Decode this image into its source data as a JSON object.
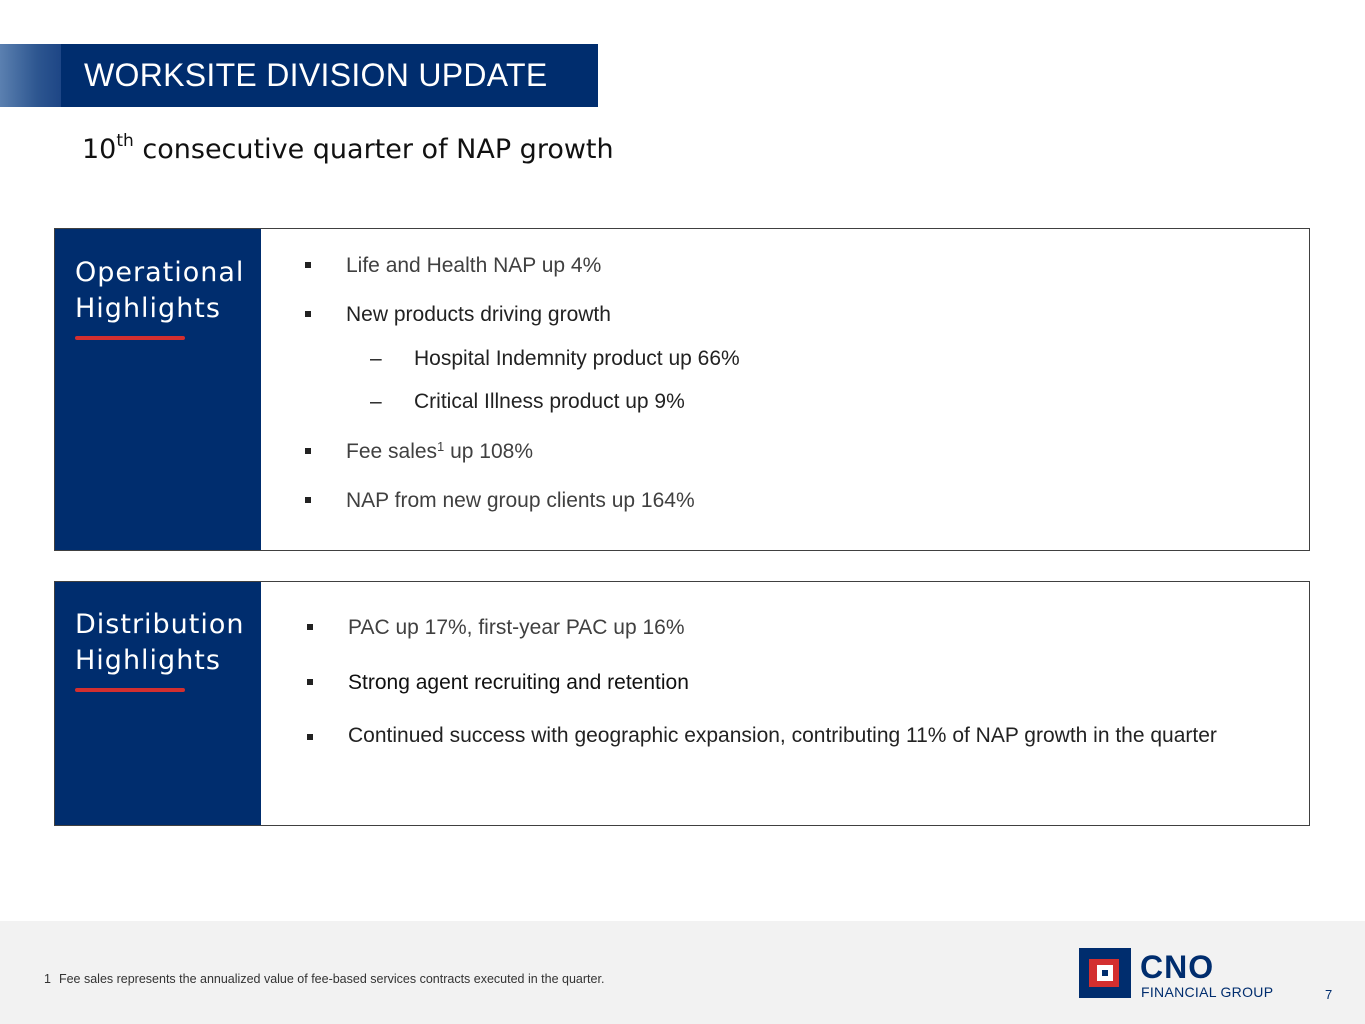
{
  "header": {
    "title": "WORKSITE DIVISION UPDATE",
    "subtitle_prefix": "10",
    "subtitle_sup": "th",
    "subtitle_rest": " consecutive quarter of NAP growth"
  },
  "operational": {
    "heading_line1": "Operational",
    "heading_line2": "Highlights",
    "bullets": [
      {
        "text": "Life and Health NAP up 4%"
      },
      {
        "text": "New products driving growth"
      },
      {
        "text": "Hospital Indemnity product up 66%"
      },
      {
        "text": "Critical Illness product up 9%"
      },
      {
        "text_before": "Fee sales",
        "sup": "1",
        "text_after": " up 108%"
      },
      {
        "text": "NAP from new group clients up 164%"
      }
    ],
    "sub_bullet_marker": "–"
  },
  "distribution": {
    "heading_line1": "Distribution",
    "heading_line2": "Highlights",
    "bullets": [
      {
        "text": "PAC up 17%, first-year PAC up 16%"
      },
      {
        "text": "Strong agent recruiting and retention"
      },
      {
        "text": "Continued success with geographic expansion, contributing 11% of NAP growth in the quarter"
      }
    ]
  },
  "footer": {
    "footnote_num": "1",
    "footnote_text": "Fee sales represents the annualized value of fee-based services contracts executed in the quarter.",
    "logo_name": "CNO",
    "logo_tagline": "FINANCIAL GROUP",
    "page_number": "7"
  }
}
